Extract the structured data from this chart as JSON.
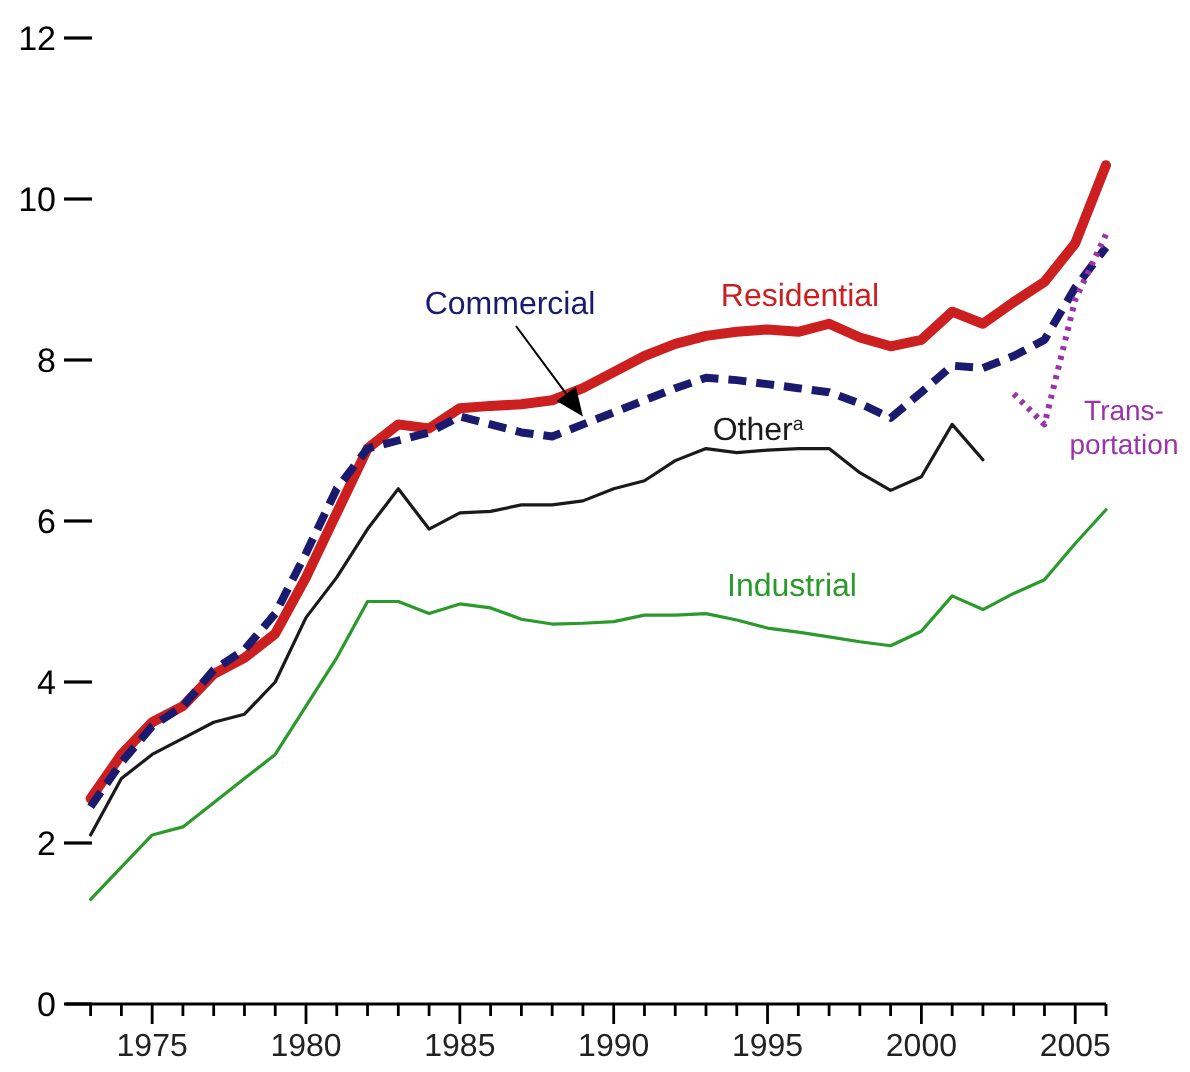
{
  "chart_data": {
    "type": "line",
    "x": [
      1973,
      1974,
      1975,
      1976,
      1977,
      1978,
      1979,
      1980,
      1981,
      1982,
      1983,
      1984,
      1985,
      1986,
      1987,
      1988,
      1989,
      1990,
      1991,
      1992,
      1993,
      1994,
      1995,
      1996,
      1997,
      1998,
      1999,
      2000,
      2001,
      2002,
      2003,
      2004,
      2005,
      2006
    ],
    "xlim": [
      1972.2,
      2006
    ],
    "xticks": [
      {
        "value": 1973,
        "label": null
      },
      {
        "value": 1974,
        "label": null
      },
      1975,
      {
        "value": 1976,
        "label": null
      },
      {
        "value": 1977,
        "label": null
      },
      {
        "value": 1978,
        "label": null
      },
      {
        "value": 1979,
        "label": null
      },
      1980,
      {
        "value": 1981,
        "label": null
      },
      {
        "value": 1982,
        "label": null
      },
      {
        "value": 1983,
        "label": null
      },
      {
        "value": 1984,
        "label": null
      },
      1985,
      {
        "value": 1986,
        "label": null
      },
      {
        "value": 1987,
        "label": null
      },
      {
        "value": 1988,
        "label": null
      },
      {
        "value": 1989,
        "label": null
      },
      1990,
      {
        "value": 1991,
        "label": null
      },
      {
        "value": 1992,
        "label": null
      },
      {
        "value": 1993,
        "label": null
      },
      {
        "value": 1994,
        "label": null
      },
      1995,
      {
        "value": 1996,
        "label": null
      },
      {
        "value": 1997,
        "label": null
      },
      {
        "value": 1998,
        "label": null
      },
      {
        "value": 1999,
        "label": null
      },
      2000,
      {
        "value": 2001,
        "label": null
      },
      {
        "value": 2002,
        "label": null
      },
      {
        "value": 2003,
        "label": null
      },
      {
        "value": 2004,
        "label": null
      },
      2005,
      {
        "value": 2006,
        "label": null
      }
    ],
    "ylim": [
      0,
      12
    ],
    "yticks": [
      0,
      2,
      4,
      6,
      8,
      10,
      12
    ],
    "grid": false,
    "marker": "none",
    "series": [
      {
        "name": "Residential",
        "color": "#cc1f1f",
        "line_style": "solid",
        "values": [
          2.55,
          3.1,
          3.5,
          3.7,
          4.1,
          4.3,
          4.6,
          5.3,
          6.1,
          6.9,
          7.2,
          7.15,
          7.4,
          7.43,
          7.45,
          7.5,
          7.65,
          7.85,
          8.05,
          8.2,
          8.3,
          8.35,
          8.38,
          8.35,
          8.45,
          8.28,
          8.17,
          8.25,
          8.6,
          8.45,
          8.72,
          8.97,
          9.45,
          10.42
        ]
      },
      {
        "name": "Commercial",
        "color": "#1a1a6e",
        "line_style": "dashed",
        "values": [
          2.45,
          3.0,
          3.45,
          3.7,
          4.15,
          4.4,
          4.85,
          5.6,
          6.4,
          6.9,
          7.0,
          7.1,
          7.3,
          7.2,
          7.1,
          7.05,
          7.2,
          7.35,
          7.5,
          7.65,
          7.78,
          7.75,
          7.7,
          7.65,
          7.6,
          7.46,
          7.28,
          7.6,
          7.93,
          7.9,
          8.05,
          8.25,
          8.9,
          9.4
        ]
      },
      {
        "name": "Other$^{a}$",
        "color": "#1a1a1a",
        "line_style": "solid",
        "values": [
          2.1,
          2.8,
          3.1,
          3.3,
          3.5,
          3.6,
          4.0,
          4.8,
          5.3,
          5.9,
          6.4,
          5.9,
          6.1,
          6.12,
          6.2,
          6.2,
          6.25,
          6.4,
          6.5,
          6.75,
          6.9,
          6.85,
          6.88,
          6.9,
          6.9,
          6.6,
          6.38,
          6.55,
          7.2,
          6.76,
          null,
          null,
          null,
          null
        ]
      },
      {
        "name": "Industrial",
        "color": "#2a9a2a",
        "line_style": "solid",
        "values": [
          1.3,
          1.7,
          2.1,
          2.2,
          2.5,
          2.8,
          3.1,
          3.7,
          4.3,
          5.0,
          5.0,
          4.85,
          4.97,
          4.92,
          4.78,
          4.72,
          4.73,
          4.75,
          4.83,
          4.83,
          4.85,
          4.77,
          4.67,
          4.62,
          4.56,
          4.5,
          4.45,
          4.63,
          5.07,
          4.9,
          5.1,
          5.27,
          5.72,
          6.14
        ]
      },
      {
        "name": "Trans-portation",
        "color": "#9933aa",
        "line_style": "dotted",
        "values": [
          null,
          null,
          null,
          null,
          null,
          null,
          null,
          null,
          null,
          null,
          null,
          null,
          null,
          null,
          null,
          null,
          null,
          null,
          null,
          null,
          null,
          null,
          null,
          null,
          null,
          null,
          null,
          null,
          null,
          null,
          7.58,
          7.2,
          8.75,
          9.56
        ]
      }
    ]
  }
}
